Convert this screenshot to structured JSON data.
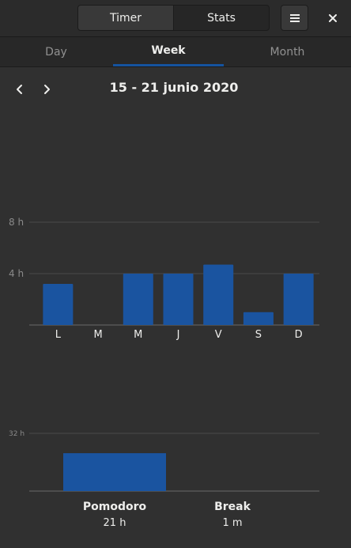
{
  "header": {
    "timer_label": "Timer",
    "stats_label": "Stats",
    "menu_icon": "hamburger-icon",
    "close_icon": "close-icon"
  },
  "tabs": [
    {
      "label": "Day",
      "active": false
    },
    {
      "label": "Week",
      "active": true
    },
    {
      "label": "Month",
      "active": false
    }
  ],
  "nav": {
    "prev_icon": "chevron-left-icon",
    "next_icon": "chevron-right-icon",
    "date_range": "15 - 21 junio 2020"
  },
  "colors": {
    "accent": "#15539e",
    "bar": "#1a54a0",
    "grid": "#4a4a4a",
    "axis_text": "#8a8a8a"
  },
  "chart_data": [
    {
      "type": "bar",
      "categories": [
        "L",
        "M",
        "M",
        "J",
        "V",
        "S",
        "D"
      ],
      "values": [
        3.2,
        0,
        4.0,
        4.0,
        4.7,
        1.0,
        4.0
      ],
      "yticks": [
        {
          "value": 8,
          "label": "8 h"
        },
        {
          "value": 4,
          "label": "4 h"
        }
      ],
      "ylim": [
        0,
        8
      ]
    },
    {
      "type": "bar",
      "categories": [
        "Pomodoro",
        "Break"
      ],
      "values": [
        21,
        0.0167
      ],
      "value_labels": [
        "21 h",
        "1 m"
      ],
      "yticks": [
        {
          "value": 32,
          "label": "32 h"
        }
      ],
      "ylim": [
        0,
        32
      ]
    }
  ]
}
